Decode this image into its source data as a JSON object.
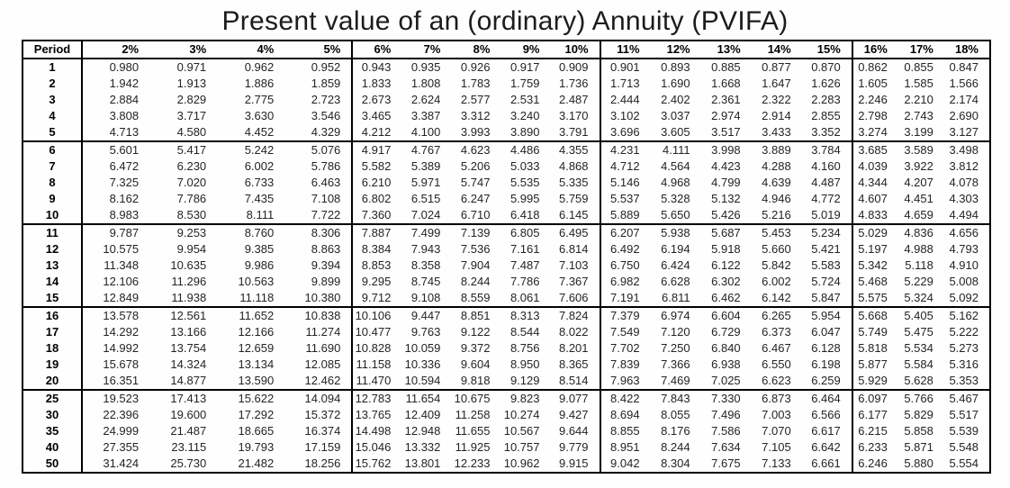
{
  "title": "Present value of an (ordinary) Annuity (PVIFA)",
  "table": {
    "period_header": "Period",
    "rate_headers": [
      "2%",
      "3%",
      "4%",
      "5%",
      "6%",
      "7%",
      "8%",
      "9%",
      "10%",
      "11%",
      "12%",
      "13%",
      "14%",
      "15%",
      "16%",
      "17%",
      "18%"
    ],
    "group_start_cols": [
      4,
      9,
      14
    ],
    "band_start_rows": [
      5,
      10,
      15,
      20
    ],
    "rows": [
      {
        "period": "1",
        "values": [
          "0.980",
          "0.971",
          "0.962",
          "0.952",
          "0.943",
          "0.935",
          "0.926",
          "0.917",
          "0.909",
          "0.901",
          "0.893",
          "0.885",
          "0.877",
          "0.870",
          "0.862",
          "0.855",
          "0.847"
        ]
      },
      {
        "period": "2",
        "values": [
          "1.942",
          "1.913",
          "1.886",
          "1.859",
          "1.833",
          "1.808",
          "1.783",
          "1.759",
          "1.736",
          "1.713",
          "1.690",
          "1.668",
          "1.647",
          "1.626",
          "1.605",
          "1.585",
          "1.566"
        ]
      },
      {
        "period": "3",
        "values": [
          "2.884",
          "2.829",
          "2.775",
          "2.723",
          "2.673",
          "2.624",
          "2.577",
          "2.531",
          "2.487",
          "2.444",
          "2.402",
          "2.361",
          "2.322",
          "2.283",
          "2.246",
          "2.210",
          "2.174"
        ]
      },
      {
        "period": "4",
        "values": [
          "3.808",
          "3.717",
          "3.630",
          "3.546",
          "3.465",
          "3.387",
          "3.312",
          "3.240",
          "3.170",
          "3.102",
          "3.037",
          "2.974",
          "2.914",
          "2.855",
          "2.798",
          "2.743",
          "2.690"
        ]
      },
      {
        "period": "5",
        "values": [
          "4.713",
          "4.580",
          "4.452",
          "4.329",
          "4.212",
          "4.100",
          "3.993",
          "3.890",
          "3.791",
          "3.696",
          "3.605",
          "3.517",
          "3.433",
          "3.352",
          "3.274",
          "3.199",
          "3.127"
        ]
      },
      {
        "period": "6",
        "values": [
          "5.601",
          "5.417",
          "5.242",
          "5.076",
          "4.917",
          "4.767",
          "4.623",
          "4.486",
          "4.355",
          "4.231",
          "4.111",
          "3.998",
          "3.889",
          "3.784",
          "3.685",
          "3.589",
          "3.498"
        ]
      },
      {
        "period": "7",
        "values": [
          "6.472",
          "6.230",
          "6.002",
          "5.786",
          "5.582",
          "5.389",
          "5.206",
          "5.033",
          "4.868",
          "4.712",
          "4.564",
          "4.423",
          "4.288",
          "4.160",
          "4.039",
          "3.922",
          "3.812"
        ]
      },
      {
        "period": "8",
        "values": [
          "7.325",
          "7.020",
          "6.733",
          "6.463",
          "6.210",
          "5.971",
          "5.747",
          "5.535",
          "5.335",
          "5.146",
          "4.968",
          "4.799",
          "4.639",
          "4.487",
          "4.344",
          "4.207",
          "4.078"
        ]
      },
      {
        "period": "9",
        "values": [
          "8.162",
          "7.786",
          "7.435",
          "7.108",
          "6.802",
          "6.515",
          "6.247",
          "5.995",
          "5.759",
          "5.537",
          "5.328",
          "5.132",
          "4.946",
          "4.772",
          "4.607",
          "4.451",
          "4.303"
        ]
      },
      {
        "period": "10",
        "values": [
          "8.983",
          "8.530",
          "8.111",
          "7.722",
          "7.360",
          "7.024",
          "6.710",
          "6.418",
          "6.145",
          "5.889",
          "5.650",
          "5.426",
          "5.216",
          "5.019",
          "4.833",
          "4.659",
          "4.494"
        ]
      },
      {
        "period": "11",
        "values": [
          "9.787",
          "9.253",
          "8.760",
          "8.306",
          "7.887",
          "7.499",
          "7.139",
          "6.805",
          "6.495",
          "6.207",
          "5.938",
          "5.687",
          "5.453",
          "5.234",
          "5.029",
          "4.836",
          "4.656"
        ]
      },
      {
        "period": "12",
        "values": [
          "10.575",
          "9.954",
          "9.385",
          "8.863",
          "8.384",
          "7.943",
          "7.536",
          "7.161",
          "6.814",
          "6.492",
          "6.194",
          "5.918",
          "5.660",
          "5.421",
          "5.197",
          "4.988",
          "4.793"
        ]
      },
      {
        "period": "13",
        "values": [
          "11.348",
          "10.635",
          "9.986",
          "9.394",
          "8.853",
          "8.358",
          "7.904",
          "7.487",
          "7.103",
          "6.750",
          "6.424",
          "6.122",
          "5.842",
          "5.583",
          "5.342",
          "5.118",
          "4.910"
        ]
      },
      {
        "period": "14",
        "values": [
          "12.106",
          "11.296",
          "10.563",
          "9.899",
          "9.295",
          "8.745",
          "8.244",
          "7.786",
          "7.367",
          "6.982",
          "6.628",
          "6.302",
          "6.002",
          "5.724",
          "5.468",
          "5.229",
          "5.008"
        ]
      },
      {
        "period": "15",
        "values": [
          "12.849",
          "11.938",
          "11.118",
          "10.380",
          "9.712",
          "9.108",
          "8.559",
          "8.061",
          "7.606",
          "7.191",
          "6.811",
          "6.462",
          "6.142",
          "5.847",
          "5.575",
          "5.324",
          "5.092"
        ]
      },
      {
        "period": "16",
        "values": [
          "13.578",
          "12.561",
          "11.652",
          "10.838",
          "10.106",
          "9.447",
          "8.851",
          "8.313",
          "7.824",
          "7.379",
          "6.974",
          "6.604",
          "6.265",
          "5.954",
          "5.668",
          "5.405",
          "5.162"
        ]
      },
      {
        "period": "17",
        "values": [
          "14.292",
          "13.166",
          "12.166",
          "11.274",
          "10.477",
          "9.763",
          "9.122",
          "8.544",
          "8.022",
          "7.549",
          "7.120",
          "6.729",
          "6.373",
          "6.047",
          "5.749",
          "5.475",
          "5.222"
        ]
      },
      {
        "period": "18",
        "values": [
          "14.992",
          "13.754",
          "12.659",
          "11.690",
          "10.828",
          "10.059",
          "9.372",
          "8.756",
          "8.201",
          "7.702",
          "7.250",
          "6.840",
          "6.467",
          "6.128",
          "5.818",
          "5.534",
          "5.273"
        ]
      },
      {
        "period": "19",
        "values": [
          "15.678",
          "14.324",
          "13.134",
          "12.085",
          "11.158",
          "10.336",
          "9.604",
          "8.950",
          "8.365",
          "7.839",
          "7.366",
          "6.938",
          "6.550",
          "6.198",
          "5.877",
          "5.584",
          "5.316"
        ]
      },
      {
        "period": "20",
        "values": [
          "16.351",
          "14.877",
          "13.590",
          "12.462",
          "11.470",
          "10.594",
          "9.818",
          "9.129",
          "8.514",
          "7.963",
          "7.469",
          "7.025",
          "6.623",
          "6.259",
          "5.929",
          "5.628",
          "5.353"
        ]
      },
      {
        "period": "25",
        "values": [
          "19.523",
          "17.413",
          "15.622",
          "14.094",
          "12.783",
          "11.654",
          "10.675",
          "9.823",
          "9.077",
          "8.422",
          "7.843",
          "7.330",
          "6.873",
          "6.464",
          "6.097",
          "5.766",
          "5.467"
        ]
      },
      {
        "period": "30",
        "values": [
          "22.396",
          "19.600",
          "17.292",
          "15.372",
          "13.765",
          "12.409",
          "11.258",
          "10.274",
          "9.427",
          "8.694",
          "8.055",
          "7.496",
          "7.003",
          "6.566",
          "6.177",
          "5.829",
          "5.517"
        ]
      },
      {
        "period": "35",
        "values": [
          "24.999",
          "21.487",
          "18.665",
          "16.374",
          "14.498",
          "12.948",
          "11.655",
          "10.567",
          "9.644",
          "8.855",
          "8.176",
          "7.586",
          "7.070",
          "6.617",
          "6.215",
          "5.858",
          "5.539"
        ]
      },
      {
        "period": "40",
        "values": [
          "27.355",
          "23.115",
          "19.793",
          "17.159",
          "15.046",
          "13.332",
          "11.925",
          "10.757",
          "9.779",
          "8.951",
          "8.244",
          "7.634",
          "7.105",
          "6.642",
          "6.233",
          "5.871",
          "5.548"
        ]
      },
      {
        "period": "50",
        "values": [
          "31.424",
          "25.730",
          "21.482",
          "18.256",
          "15.762",
          "13.801",
          "12.233",
          "10.962",
          "9.915",
          "9.042",
          "8.304",
          "7.675",
          "7.133",
          "6.661",
          "6.246",
          "5.880",
          "5.554"
        ]
      }
    ]
  }
}
